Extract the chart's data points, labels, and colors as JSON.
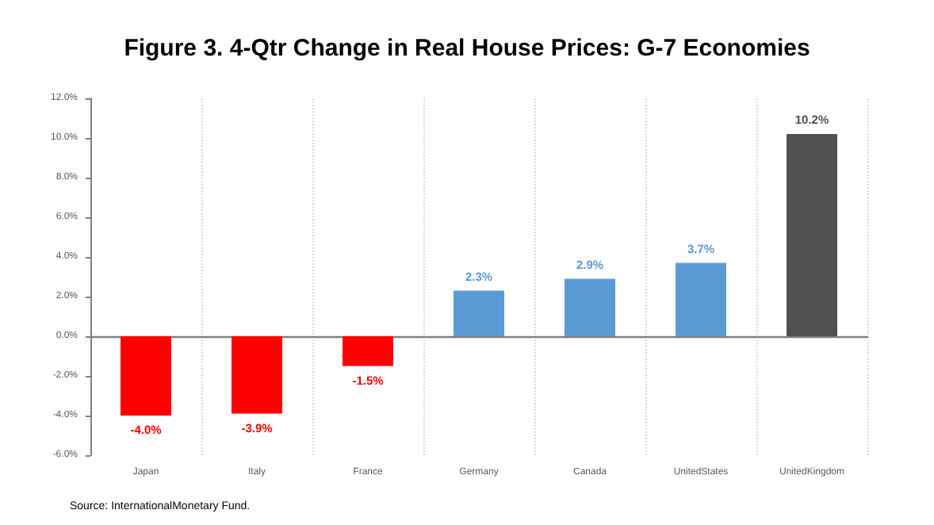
{
  "chart_data": {
    "type": "bar",
    "title": "Figure 3. 4-Qtr Change in Real House Prices: G-7 Economies",
    "categories": [
      "Japan",
      "Italy",
      "France",
      "Germany",
      "Canada",
      "UnitedStates",
      "UnitedKingdom"
    ],
    "values": [
      -4.0,
      -3.9,
      -1.5,
      2.3,
      2.9,
      3.7,
      10.2
    ],
    "colors": [
      "#ff0000",
      "#ff0000",
      "#ff0000",
      "#5b9bd5",
      "#5b9bd5",
      "#5b9bd5",
      "#505050"
    ],
    "value_labels": [
      "-4.0%",
      "-3.9%",
      "-1.5%",
      "2.3%",
      "2.9%",
      "3.7%",
      "10.2%"
    ],
    "ylim": [
      -6,
      12
    ],
    "yticks": [
      {
        "value": -6,
        "label": "-6.0%"
      },
      {
        "value": -4,
        "label": "-4.0%"
      },
      {
        "value": -2,
        "label": "-2.0%"
      },
      {
        "value": 0,
        "label": "0.0%"
      },
      {
        "value": 2,
        "label": "2.0%"
      },
      {
        "value": 4,
        "label": "4.0%"
      },
      {
        "value": 6,
        "label": "6.0%"
      },
      {
        "value": 8,
        "label": "8.0%"
      },
      {
        "value": 10,
        "label": "10.0%"
      },
      {
        "value": 12,
        "label": "12.0%"
      }
    ],
    "grid": "x",
    "annotations": [
      "Source: InternationalMonetary Fund."
    ]
  }
}
